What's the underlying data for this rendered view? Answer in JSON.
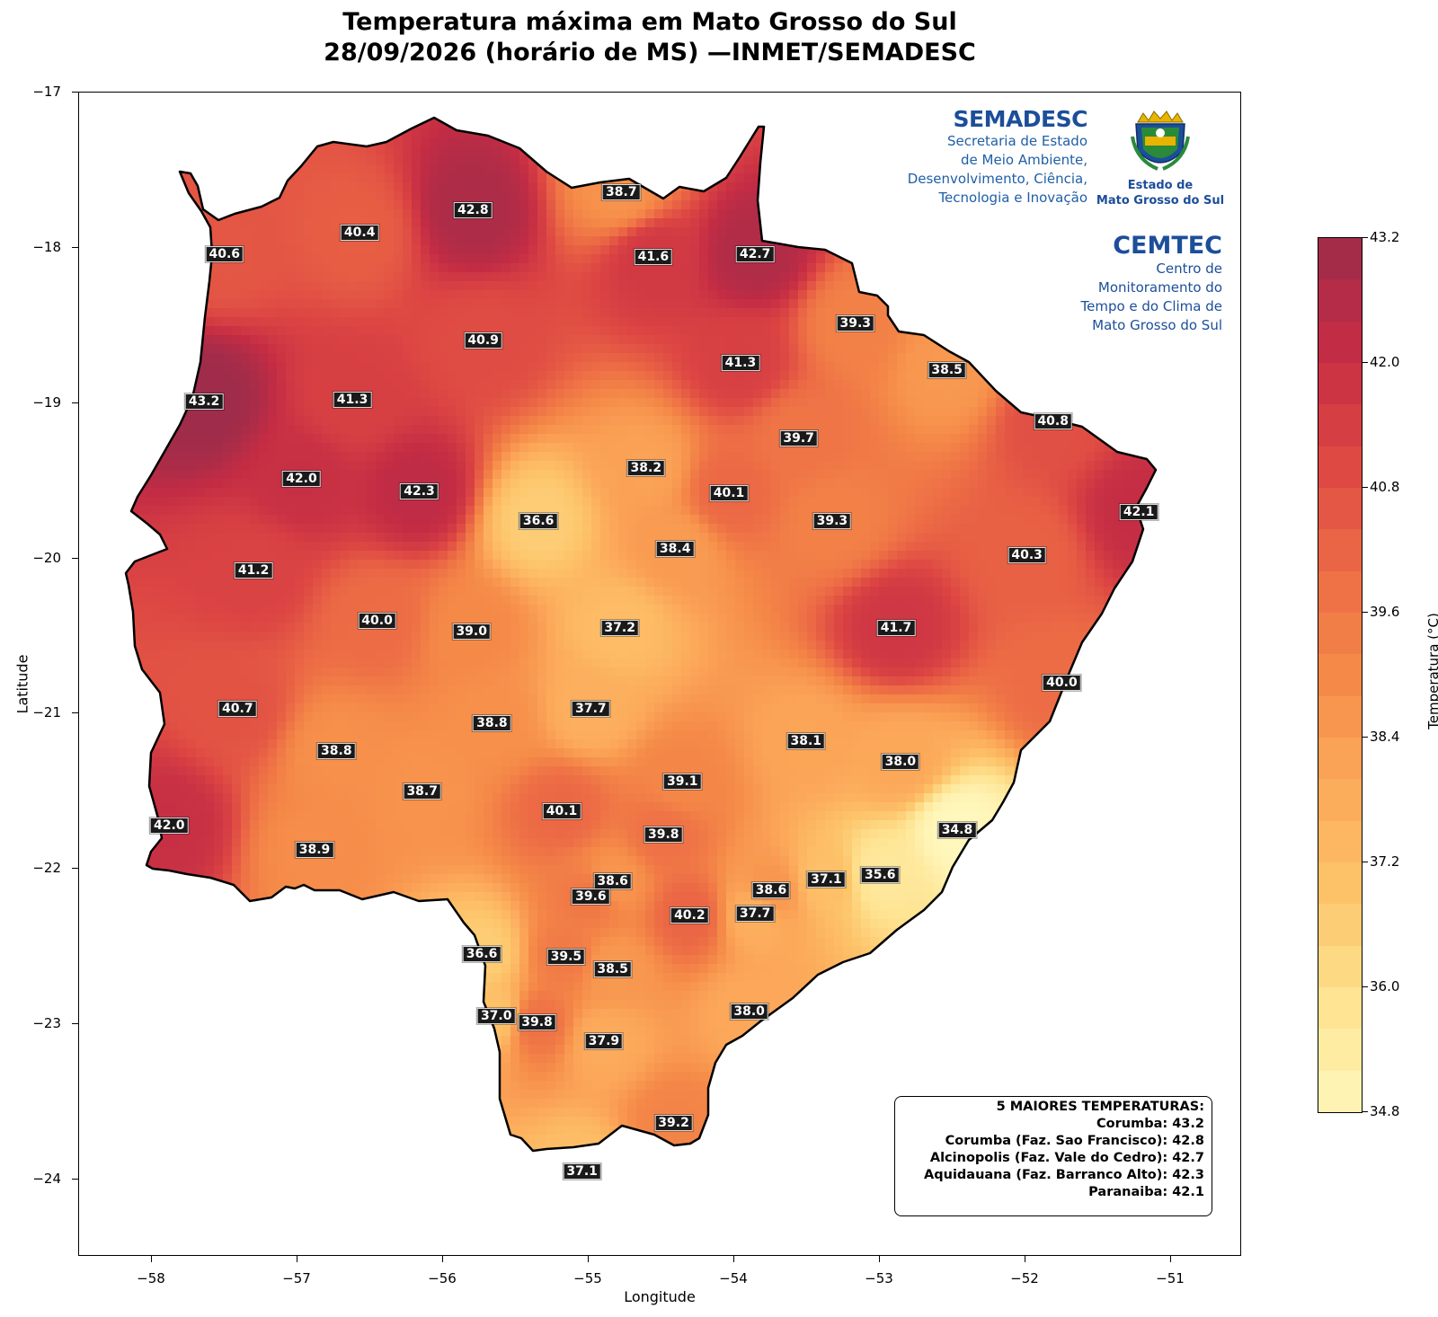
{
  "title": {
    "line1": "Temperatura máxima em Mato Grosso do Sul",
    "line2": "28/09/2026 (horário de MS) —INMET/SEMADESC"
  },
  "axes": {
    "xlabel": "Longitude",
    "ylabel": "Latitude",
    "xticks": [
      "−58",
      "−57",
      "−56",
      "−55",
      "−54",
      "−53",
      "−52",
      "−51"
    ],
    "yticks": [
      "−17",
      "−18",
      "−19",
      "−20",
      "−21",
      "−22",
      "−23",
      "−24"
    ],
    "xlim": [
      -58.5,
      -50.5
    ],
    "ylim": [
      -24.5,
      -17
    ]
  },
  "colorbar": {
    "label": "Temperatura (°C)",
    "ticks": [
      "43.2",
      "42.0",
      "40.8",
      "39.6",
      "38.4",
      "37.2",
      "36.0",
      "34.8"
    ],
    "range": [
      34.8,
      43.2
    ],
    "colors": [
      "#fff7bc",
      "#fee391",
      "#fdc46a",
      "#fca95a",
      "#f58a48",
      "#ec6a45",
      "#dc4543",
      "#c42c44",
      "#9e2c4a"
    ]
  },
  "logos": {
    "semadesc_name": "SEMADESC",
    "semadesc_line1": "Secretaria de Estado",
    "semadesc_line2": "de Meio Ambiente,",
    "semadesc_line3": "Desenvolvimento, Ciência,",
    "semadesc_line4": "Tecnologia e Inovação",
    "state_line1": "Estado de",
    "state_line2": "Mato Grosso do Sul",
    "cemtec_name": "CEMTEC",
    "cemtec_line1": "Centro de",
    "cemtec_line2": "Monitoramento do",
    "cemtec_line3": "Tempo e do Clima de",
    "cemtec_line4": "Mato Grosso do Sul"
  },
  "top5": {
    "header": "5 MAIORES TEMPERATURAS:",
    "items": [
      "Corumba: 43.2",
      "Corumba (Faz. Sao Francisco): 42.8",
      "Alcinopolis (Faz. Vale do Cedro): 42.7",
      "Aquidauana (Faz. Barranco Alto): 42.3",
      "Paranaiba: 42.1"
    ]
  },
  "chart_data": {
    "type": "heatmap",
    "title": "Temperatura máxima em Mato Grosso do Sul 28/09/2026 (horário de MS) —INMET/SEMADESC",
    "xlabel": "Longitude",
    "ylabel": "Latitude",
    "value_label": "Temperatura (°C)",
    "stations": [
      {
        "lon": -57.5,
        "lat": -18.04,
        "value": "40.6"
      },
      {
        "lon": -56.57,
        "lat": -17.9,
        "value": "40.4"
      },
      {
        "lon": -55.79,
        "lat": -17.76,
        "value": "42.8"
      },
      {
        "lon": -54.77,
        "lat": -17.64,
        "value": "38.7"
      },
      {
        "lon": -54.55,
        "lat": -18.06,
        "value": "41.6"
      },
      {
        "lon": -53.85,
        "lat": -18.04,
        "value": "42.7"
      },
      {
        "lon": -53.16,
        "lat": -18.49,
        "value": "39.3"
      },
      {
        "lon": -55.72,
        "lat": -18.6,
        "value": "40.9"
      },
      {
        "lon": -53.95,
        "lat": -18.74,
        "value": "41.3"
      },
      {
        "lon": -52.53,
        "lat": -18.79,
        "value": "38.5"
      },
      {
        "lon": -57.64,
        "lat": -18.99,
        "value": "43.2"
      },
      {
        "lon": -56.62,
        "lat": -18.98,
        "value": "41.3"
      },
      {
        "lon": -51.8,
        "lat": -19.12,
        "value": "40.8"
      },
      {
        "lon": -53.55,
        "lat": -19.23,
        "value": "39.7"
      },
      {
        "lon": -54.6,
        "lat": -19.42,
        "value": "38.2"
      },
      {
        "lon": -56.97,
        "lat": -19.49,
        "value": "42.0"
      },
      {
        "lon": -56.16,
        "lat": -19.57,
        "value": "42.3"
      },
      {
        "lon": -54.03,
        "lat": -19.58,
        "value": "40.1"
      },
      {
        "lon": -51.21,
        "lat": -19.7,
        "value": "42.1"
      },
      {
        "lon": -55.34,
        "lat": -19.76,
        "value": "36.6"
      },
      {
        "lon": -53.32,
        "lat": -19.76,
        "value": "39.3"
      },
      {
        "lon": -54.4,
        "lat": -19.94,
        "value": "38.4"
      },
      {
        "lon": -51.98,
        "lat": -19.98,
        "value": "40.3"
      },
      {
        "lon": -57.3,
        "lat": -20.08,
        "value": "41.2"
      },
      {
        "lon": -56.45,
        "lat": -20.4,
        "value": "40.0"
      },
      {
        "lon": -55.8,
        "lat": -20.47,
        "value": "39.0"
      },
      {
        "lon": -54.78,
        "lat": -20.45,
        "value": "37.2"
      },
      {
        "lon": -52.88,
        "lat": -20.45,
        "value": "41.7"
      },
      {
        "lon": -51.74,
        "lat": -20.8,
        "value": "40.0"
      },
      {
        "lon": -57.41,
        "lat": -20.97,
        "value": "40.7"
      },
      {
        "lon": -54.98,
        "lat": -20.97,
        "value": "37.7"
      },
      {
        "lon": -55.66,
        "lat": -21.06,
        "value": "38.8"
      },
      {
        "lon": -53.5,
        "lat": -21.18,
        "value": "38.1"
      },
      {
        "lon": -56.73,
        "lat": -21.24,
        "value": "38.8"
      },
      {
        "lon": -52.85,
        "lat": -21.31,
        "value": "38.0"
      },
      {
        "lon": -54.35,
        "lat": -21.44,
        "value": "39.1"
      },
      {
        "lon": -56.14,
        "lat": -21.5,
        "value": "38.7"
      },
      {
        "lon": -55.18,
        "lat": -21.63,
        "value": "40.1"
      },
      {
        "lon": -52.46,
        "lat": -21.75,
        "value": "34.8"
      },
      {
        "lon": -54.48,
        "lat": -21.78,
        "value": "39.8"
      },
      {
        "lon": -57.88,
        "lat": -21.72,
        "value": "42.0"
      },
      {
        "lon": -56.88,
        "lat": -21.88,
        "value": "38.9"
      },
      {
        "lon": -52.99,
        "lat": -22.04,
        "value": "35.6"
      },
      {
        "lon": -53.36,
        "lat": -22.07,
        "value": "37.1"
      },
      {
        "lon": -54.83,
        "lat": -22.08,
        "value": "38.6"
      },
      {
        "lon": -53.74,
        "lat": -22.14,
        "value": "38.6"
      },
      {
        "lon": -54.98,
        "lat": -22.18,
        "value": "39.6"
      },
      {
        "lon": -54.3,
        "lat": -22.3,
        "value": "40.2"
      },
      {
        "lon": -53.85,
        "lat": -22.29,
        "value": "37.7"
      },
      {
        "lon": -55.73,
        "lat": -22.55,
        "value": "36.6"
      },
      {
        "lon": -55.15,
        "lat": -22.57,
        "value": "39.5"
      },
      {
        "lon": -54.83,
        "lat": -22.65,
        "value": "38.5"
      },
      {
        "lon": -53.89,
        "lat": -22.92,
        "value": "38.0"
      },
      {
        "lon": -55.63,
        "lat": -22.95,
        "value": "37.0"
      },
      {
        "lon": -55.35,
        "lat": -22.99,
        "value": "39.8"
      },
      {
        "lon": -54.89,
        "lat": -23.11,
        "value": "37.9"
      },
      {
        "lon": -54.41,
        "lat": -23.64,
        "value": "39.2"
      },
      {
        "lon": -55.04,
        "lat": -23.95,
        "value": "37.1"
      }
    ]
  }
}
